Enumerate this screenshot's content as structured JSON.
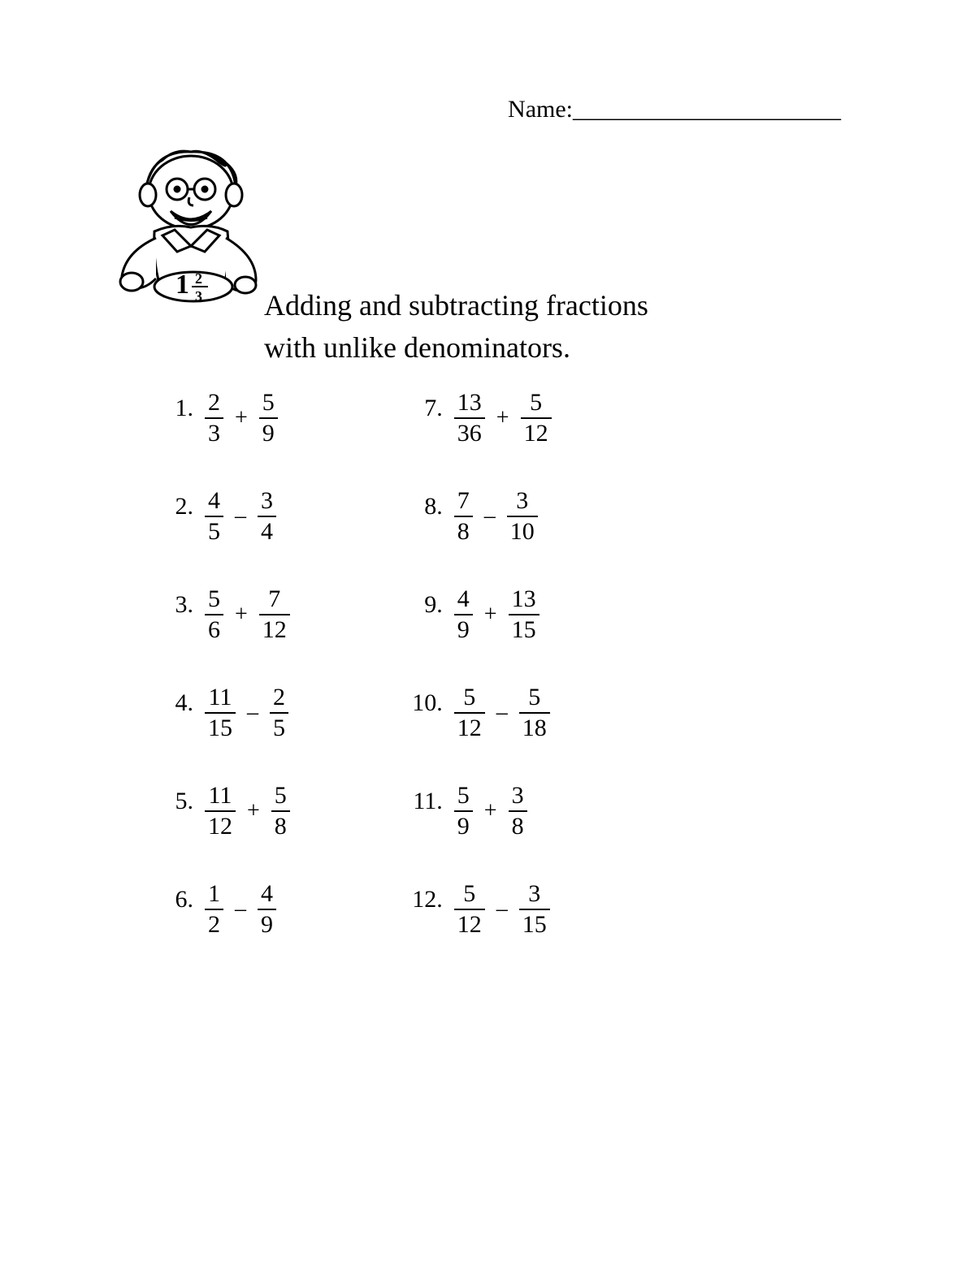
{
  "header": {
    "name_label": "Name:",
    "name_underline": "______________________"
  },
  "title": {
    "line1": "Adding and subtracting fractions",
    "line2": "with unlike denominators."
  },
  "style": {
    "page_bg": "#ffffff",
    "text_color": "#000000",
    "title_fontsize": 36,
    "problem_fontsize": 30,
    "font_family_title": "Comic Sans MS",
    "font_family_problems": "Georgia"
  },
  "problems_left": [
    {
      "n": "1.",
      "a_num": "2",
      "a_den": "3",
      "op": "+",
      "b_num": "5",
      "b_den": "9"
    },
    {
      "n": "2.",
      "a_num": "4",
      "a_den": "5",
      "op": "–",
      "b_num": "3",
      "b_den": "4"
    },
    {
      "n": "3.",
      "a_num": "5",
      "a_den": "6",
      "op": "+",
      "b_num": "7",
      "b_den": "12"
    },
    {
      "n": "4.",
      "a_num": "11",
      "a_den": "15",
      "op": "–",
      "b_num": "2",
      "b_den": "5"
    },
    {
      "n": "5.",
      "a_num": "11",
      "a_den": "12",
      "op": "+",
      "b_num": "5",
      "b_den": "8"
    },
    {
      "n": "6.",
      "a_num": "1",
      "a_den": "2",
      "op": "–",
      "b_num": "4",
      "b_den": "9"
    }
  ],
  "problems_right": [
    {
      "n": "7.",
      "a_num": "13",
      "a_den": "36",
      "op": "+",
      "b_num": "5",
      "b_den": "12"
    },
    {
      "n": "8.",
      "a_num": "7",
      "a_den": "8",
      "op": "–",
      "b_num": "3",
      "b_den": "10"
    },
    {
      "n": "9.",
      "a_num": "4",
      "a_den": "9",
      "op": "+",
      "b_num": "13",
      "b_den": "15"
    },
    {
      "n": "10.",
      "a_num": "5",
      "a_den": "12",
      "op": "–",
      "b_num": "5",
      "b_den": "18"
    },
    {
      "n": "11.",
      "a_num": "5",
      "a_den": "9",
      "op": "+",
      "b_num": "3",
      "b_den": "8"
    },
    {
      "n": "12.",
      "a_num": "5",
      "a_den": "12",
      "op": "–",
      "b_num": "3",
      "b_den": "15"
    }
  ],
  "illustration": {
    "label": "boy-holding-mixed-number",
    "mixed_number": "1⅔"
  }
}
